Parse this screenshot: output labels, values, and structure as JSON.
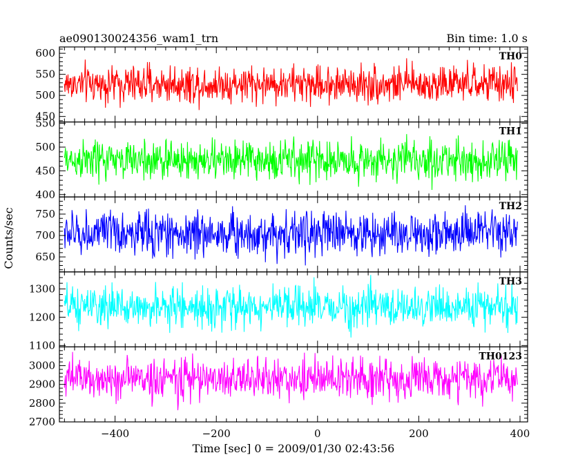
{
  "header": {
    "title": "ae090130024356_wam1_trn",
    "bin_time": "Bin time: 1.0 s"
  },
  "chart_data": {
    "type": "line",
    "title": "ae090130024356_wam1_trn",
    "subtitle": "Bin time: 1.0 s",
    "xlabel": "Time [sec] 0 = 2009/01/30 02:43:56",
    "ylabel": "Counts/sec",
    "xlim": [
      -510,
      415
    ],
    "x_ticks": [
      -400,
      -200,
      0,
      200,
      400
    ],
    "x_range": [
      -500,
      395
    ],
    "grid": false,
    "panels": [
      {
        "name": "TH0",
        "color": "#ff0000",
        "ylim": [
          437,
          615
        ],
        "y_ticks": [
          450,
          500,
          550,
          600
        ],
        "mean": 527,
        "sd": 22,
        "lo": 440,
        "hi": 612
      },
      {
        "name": "TH1",
        "color": "#00ff00",
        "ylim": [
          395,
          553
        ],
        "y_ticks": [
          400,
          450,
          500,
          550
        ],
        "mean": 472,
        "sd": 21,
        "lo": 398,
        "hi": 551
      },
      {
        "name": "TH2",
        "color": "#0000ff",
        "ylim": [
          615,
          790
        ],
        "y_ticks": [
          650,
          700,
          750
        ],
        "mean": 705,
        "sd": 26,
        "lo": 617,
        "hi": 788
      },
      {
        "name": "TH3",
        "color": "#00ffff",
        "ylim": [
          1095,
          1360
        ],
        "y_ticks": [
          1100,
          1200,
          1300
        ],
        "mean": 1235,
        "sd": 35,
        "lo": 1098,
        "hi": 1358
      },
      {
        "name": "TH0123",
        "color": "#ff00ff",
        "ylim": [
          2700,
          3100
        ],
        "y_ticks": [
          2700,
          2800,
          2900,
          3000
        ],
        "mean": 2930,
        "sd": 55,
        "lo": 2702,
        "hi": 3098
      }
    ]
  }
}
